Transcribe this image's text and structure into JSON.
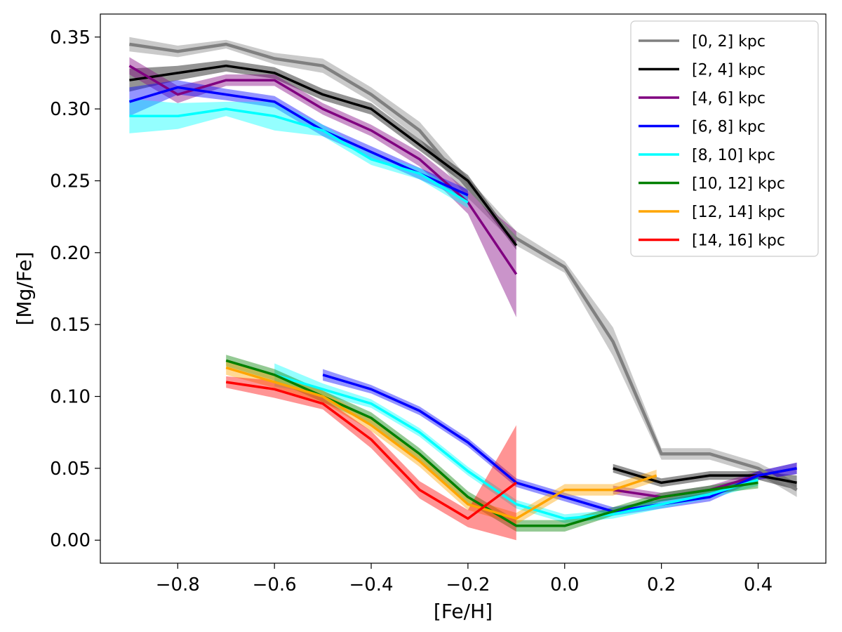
{
  "chart_data": {
    "type": "line",
    "title": "",
    "xlabel": "[Fe/H]",
    "ylabel": "[Mg/Fe]",
    "xlim": [
      -0.96,
      0.54
    ],
    "ylim": [
      -0.016,
      0.366
    ],
    "xticks": [
      -0.8,
      -0.6,
      -0.4,
      -0.2,
      0.0,
      0.2,
      0.4
    ],
    "xtick_labels": [
      "−0.8",
      "−0.6",
      "−0.4",
      "−0.2",
      "0.0",
      "0.2",
      "0.4"
    ],
    "yticks": [
      0.0,
      0.05,
      0.1,
      0.15,
      0.2,
      0.25,
      0.3,
      0.35
    ],
    "ytick_labels": [
      "0.00",
      "0.05",
      "0.10",
      "0.15",
      "0.20",
      "0.25",
      "0.30",
      "0.35"
    ],
    "grid": false,
    "legend_position": "top-right",
    "series": [
      {
        "name": "[0, 2] kpc",
        "color": "#808080",
        "segments": [
          {
            "x": [
              -0.9,
              -0.8,
              -0.7,
              -0.6,
              -0.5,
              -0.4,
              -0.3,
              -0.2,
              -0.1,
              0.0,
              0.1,
              0.2,
              0.3,
              0.4,
              0.48
            ],
            "y": [
              0.345,
              0.34,
              0.345,
              0.335,
              0.33,
              0.31,
              0.285,
              0.245,
              0.21,
              0.19,
              0.138,
              0.06,
              0.06,
              0.05,
              0.035
            ],
            "err": [
              0.005,
              0.004,
              0.003,
              0.004,
              0.005,
              0.005,
              0.006,
              0.007,
              0.005,
              0.004,
              0.01,
              0.004,
              0.004,
              0.004,
              0.005
            ]
          }
        ]
      },
      {
        "name": "[2, 4] kpc",
        "color": "#000000",
        "segments": [
          {
            "x": [
              -0.9,
              -0.8,
              -0.7,
              -0.6,
              -0.5,
              -0.4,
              -0.3,
              -0.2,
              -0.1
            ],
            "y": [
              0.32,
              0.325,
              0.33,
              0.325,
              0.31,
              0.3,
              0.275,
              0.25,
              0.205
            ],
            "err": [
              0.008,
              0.005,
              0.004,
              0.004,
              0.004,
              0.004,
              0.004,
              0.004,
              0.003
            ]
          },
          {
            "x": [
              0.1,
              0.2,
              0.3,
              0.4,
              0.48
            ],
            "y": [
              0.05,
              0.04,
              0.045,
              0.045,
              0.04
            ],
            "err": [
              0.003,
              0.003,
              0.003,
              0.003,
              0.005
            ]
          }
        ]
      },
      {
        "name": "[4, 6] kpc",
        "color": "#800080",
        "segments": [
          {
            "x": [
              -0.9,
              -0.8,
              -0.7,
              -0.6,
              -0.5,
              -0.4,
              -0.3,
              -0.2,
              -0.1
            ],
            "y": [
              0.33,
              0.31,
              0.32,
              0.32,
              0.3,
              0.285,
              0.265,
              0.235,
              0.185
            ],
            "err": [
              0.006,
              0.006,
              0.004,
              0.004,
              0.004,
              0.004,
              0.005,
              0.008,
              0.03
            ]
          },
          {
            "x": [
              0.1,
              0.2,
              0.3,
              0.4,
              0.48
            ],
            "y": [
              0.035,
              0.03,
              0.035,
              0.045,
              0.05
            ],
            "err": [
              0.003,
              0.003,
              0.003,
              0.003,
              0.004
            ]
          }
        ]
      },
      {
        "name": "[6, 8] kpc",
        "color": "#0000ff",
        "segments": [
          {
            "x": [
              -0.9,
              -0.8,
              -0.7,
              -0.6,
              -0.5,
              -0.4,
              -0.3,
              -0.2
            ],
            "y": [
              0.305,
              0.315,
              0.31,
              0.305,
              0.285,
              0.27,
              0.255,
              0.24
            ],
            "err": [
              0.01,
              0.005,
              0.004,
              0.004,
              0.004,
              0.004,
              0.004,
              0.004
            ]
          },
          {
            "x": [
              -0.5,
              -0.4,
              -0.3,
              -0.2,
              -0.1,
              0.0,
              0.1,
              0.2,
              0.3,
              0.4,
              0.48
            ],
            "y": [
              0.115,
              0.105,
              0.09,
              0.068,
              0.04,
              0.03,
              0.02,
              0.025,
              0.03,
              0.045,
              0.05
            ],
            "err": [
              0.004,
              0.003,
              0.003,
              0.003,
              0.003,
              0.003,
              0.003,
              0.003,
              0.003,
              0.003,
              0.004
            ]
          }
        ]
      },
      {
        "name": "[8, 10] kpc",
        "color": "#00ffff",
        "segments": [
          {
            "x": [
              -0.9,
              -0.8,
              -0.7,
              -0.6,
              -0.5,
              -0.4,
              -0.3,
              -0.2
            ],
            "y": [
              0.295,
              0.295,
              0.3,
              0.295,
              0.285,
              0.265,
              0.255,
              0.235
            ],
            "err": [
              0.012,
              0.009,
              0.005,
              0.01,
              0.004,
              0.004,
              0.004,
              0.004
            ]
          },
          {
            "x": [
              -0.6,
              -0.5,
              -0.4,
              -0.3,
              -0.2,
              -0.1,
              0.0,
              0.1,
              0.2,
              0.3,
              0.4
            ],
            "y": [
              0.115,
              0.105,
              0.095,
              0.075,
              0.048,
              0.025,
              0.015,
              0.018,
              0.025,
              0.032,
              0.042
            ],
            "err": [
              0.008,
              0.004,
              0.003,
              0.003,
              0.003,
              0.003,
              0.003,
              0.003,
              0.003,
              0.003,
              0.004
            ]
          }
        ]
      },
      {
        "name": "[10, 12] kpc",
        "color": "#008000",
        "segments": [
          {
            "x": [
              -0.7,
              -0.6,
              -0.5,
              -0.4,
              -0.3,
              -0.2,
              -0.1,
              0.0,
              0.1,
              0.2,
              0.3,
              0.4
            ],
            "y": [
              0.125,
              0.115,
              0.1,
              0.085,
              0.06,
              0.03,
              0.01,
              0.01,
              0.02,
              0.03,
              0.035,
              0.04
            ],
            "err": [
              0.004,
              0.004,
              0.004,
              0.004,
              0.004,
              0.004,
              0.004,
              0.004,
              0.003,
              0.003,
              0.003,
              0.004
            ]
          }
        ]
      },
      {
        "name": "[12, 14] kpc",
        "color": "#ffa500",
        "segments": [
          {
            "x": [
              -0.7,
              -0.6,
              -0.5,
              -0.4,
              -0.3,
              -0.2,
              -0.1,
              0.0,
              0.1,
              0.19
            ],
            "y": [
              0.12,
              0.11,
              0.1,
              0.08,
              0.055,
              0.025,
              0.015,
              0.035,
              0.035,
              0.045
            ],
            "err": [
              0.005,
              0.004,
              0.004,
              0.004,
              0.004,
              0.004,
              0.004,
              0.004,
              0.004,
              0.004
            ]
          }
        ]
      },
      {
        "name": "[14, 16] kpc",
        "color": "#ff0000",
        "segments": [
          {
            "x": [
              -0.7,
              -0.6,
              -0.5,
              -0.4,
              -0.3,
              -0.2,
              -0.1
            ],
            "y": [
              0.11,
              0.105,
              0.095,
              0.07,
              0.035,
              0.015,
              0.04
            ],
            "err": [
              0.004,
              0.006,
              0.004,
              0.006,
              0.006,
              0.006,
              0.04
            ]
          }
        ]
      }
    ]
  }
}
